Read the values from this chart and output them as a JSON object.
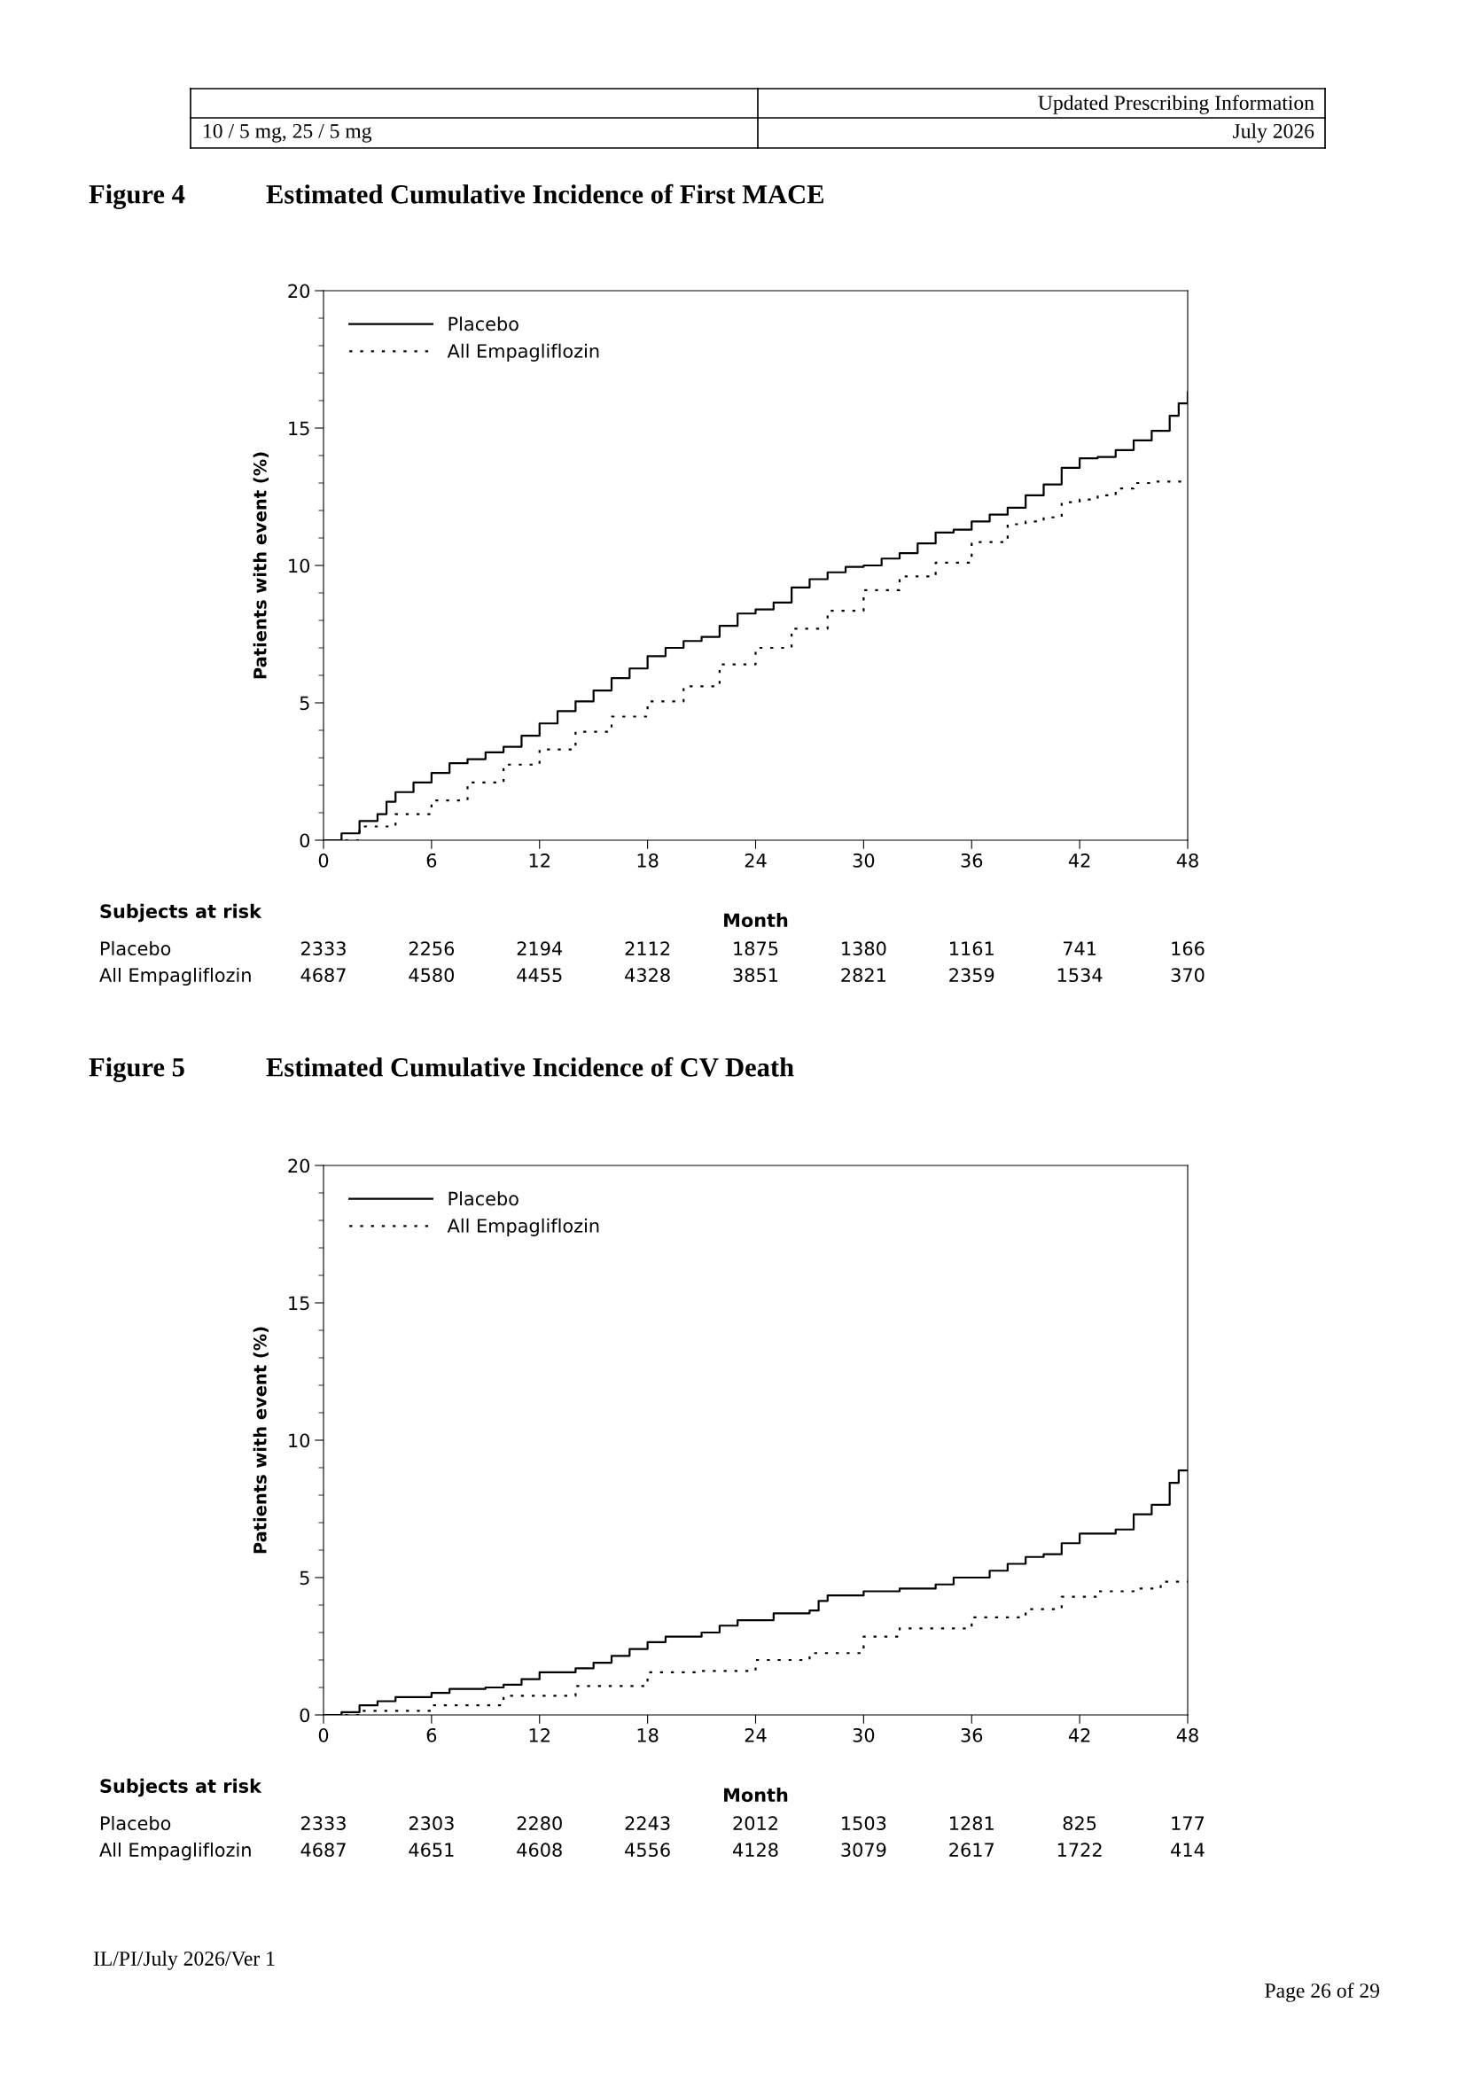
{
  "chart_data": [
    {
      "type": "step",
      "title": "Figure 4",
      "subtitle": "Estimated Cumulative Incidence of First MACE",
      "xlabel": "Month",
      "ylabel": "Patients with event (%)",
      "xlim": [
        0,
        48
      ],
      "xticks": [
        0,
        6,
        12,
        18,
        24,
        30,
        36,
        42,
        48
      ],
      "ylim": [
        0,
        20
      ],
      "yticks": [
        0,
        5,
        10,
        15,
        20
      ],
      "legend": "top left",
      "grid": false,
      "series": [
        {
          "name": "Placebo",
          "color": "#000000",
          "line_style": "solid",
          "x": [
            0,
            1,
            2,
            3,
            3.5,
            4,
            5,
            6,
            7,
            8,
            9,
            10,
            11,
            12,
            13,
            14,
            15,
            16,
            17,
            18,
            19,
            20,
            21,
            22,
            23,
            24,
            25,
            26,
            27,
            28,
            29,
            30,
            31,
            32,
            33,
            34,
            35,
            36,
            37,
            38,
            39,
            40,
            41,
            42,
            43,
            44,
            45,
            46,
            47,
            47.5,
            48
          ],
          "values": [
            0,
            0.25,
            0.7,
            0.95,
            1.4,
            1.75,
            2.1,
            2.45,
            2.8,
            2.95,
            3.2,
            3.4,
            3.8,
            4.25,
            4.7,
            5.05,
            5.45,
            5.9,
            6.25,
            6.7,
            7.0,
            7.25,
            7.4,
            7.8,
            8.25,
            8.4,
            8.65,
            9.2,
            9.5,
            9.75,
            9.95,
            10.0,
            10.25,
            10.45,
            10.8,
            11.2,
            11.3,
            11.6,
            11.85,
            12.1,
            12.55,
            12.95,
            13.55,
            13.9,
            13.95,
            14.2,
            14.55,
            14.9,
            15.45,
            15.9,
            16.3
          ]
        },
        {
          "name": "All Empagliflozin",
          "color": "#000000",
          "line_style": "dotted",
          "x": [
            0,
            2,
            4,
            6,
            8,
            10,
            12,
            14,
            16,
            18,
            20,
            22,
            24,
            26,
            28,
            30,
            32,
            34,
            36,
            38,
            39,
            40,
            41,
            42,
            43,
            44,
            45,
            46,
            48
          ],
          "values": [
            0,
            0.5,
            0.95,
            1.45,
            2.1,
            2.75,
            3.3,
            3.95,
            4.5,
            5.05,
            5.6,
            6.4,
            7.0,
            7.7,
            8.35,
            9.1,
            9.6,
            10.1,
            10.85,
            11.5,
            11.6,
            11.75,
            12.3,
            12.4,
            12.55,
            12.8,
            13.0,
            13.05,
            13.0
          ]
        }
      ],
      "annotations": [
        "Subjects at risk",
        "Placebo",
        "2333",
        "2256",
        "2194",
        "2112",
        "1875",
        "1380",
        "1161",
        "741",
        "166",
        "All Empagliflozin",
        "4687",
        "4580",
        "4455",
        "4328",
        "3851",
        "2821",
        "2359",
        "1534",
        "370",
        "Updated Prescribing Information",
        "10 / 5 mg, 25 / 5 mg",
        "July 2026"
      ]
    },
    {
      "type": "step",
      "title": "Figure 5",
      "subtitle": "Estimated Cumulative Incidence of CV Death",
      "xlabel": "Month",
      "ylabel": "Patients with event (%)",
      "xlim": [
        0,
        48
      ],
      "xticks": [
        0,
        6,
        12,
        18,
        24,
        30,
        36,
        42,
        48
      ],
      "ylim": [
        0,
        20
      ],
      "yticks": [
        0,
        5,
        10,
        15,
        20
      ],
      "legend": "top left",
      "grid": false,
      "series": [
        {
          "name": "Placebo",
          "color": "#000000",
          "line_style": "solid",
          "x": [
            0,
            1,
            2,
            3,
            4,
            6,
            7,
            9,
            10,
            11,
            12,
            14,
            15,
            16,
            17,
            18,
            19,
            21,
            22,
            23,
            25,
            27,
            27.5,
            28,
            30,
            32,
            34,
            35,
            37,
            38,
            39,
            40,
            41,
            42,
            44,
            45,
            46,
            47,
            47.5,
            48
          ],
          "values": [
            0,
            0.1,
            0.35,
            0.5,
            0.65,
            0.8,
            0.95,
            1.0,
            1.1,
            1.3,
            1.55,
            1.7,
            1.9,
            2.15,
            2.4,
            2.65,
            2.85,
            3.0,
            3.25,
            3.45,
            3.7,
            3.8,
            4.15,
            4.35,
            4.5,
            4.6,
            4.75,
            5.0,
            5.25,
            5.5,
            5.75,
            5.85,
            6.25,
            6.6,
            6.75,
            7.3,
            7.65,
            8.45,
            8.9,
            8.9
          ]
        },
        {
          "name": "All Empagliflozin",
          "color": "#000000",
          "line_style": "dotted",
          "x": [
            0,
            2,
            6,
            10,
            14,
            18,
            21,
            24,
            27,
            30,
            32,
            36,
            39,
            41,
            43,
            45,
            46.5,
            48
          ],
          "values": [
            0,
            0.15,
            0.35,
            0.7,
            1.05,
            1.55,
            1.6,
            2.0,
            2.25,
            2.85,
            3.15,
            3.55,
            3.85,
            4.3,
            4.5,
            4.6,
            4.85,
            4.85
          ]
        }
      ],
      "annotations": [
        "Subjects at risk",
        "Placebo",
        "2333",
        "2303",
        "2280",
        "2243",
        "2012",
        "1503",
        "1281",
        "825",
        "177",
        "All Empagliflozin",
        "4687",
        "4651",
        "4608",
        "4556",
        "4128",
        "3079",
        "2617",
        "1722",
        "414",
        "IL/PI/July 2026/Ver 1",
        "Page 26 of 29"
      ]
    }
  ]
}
